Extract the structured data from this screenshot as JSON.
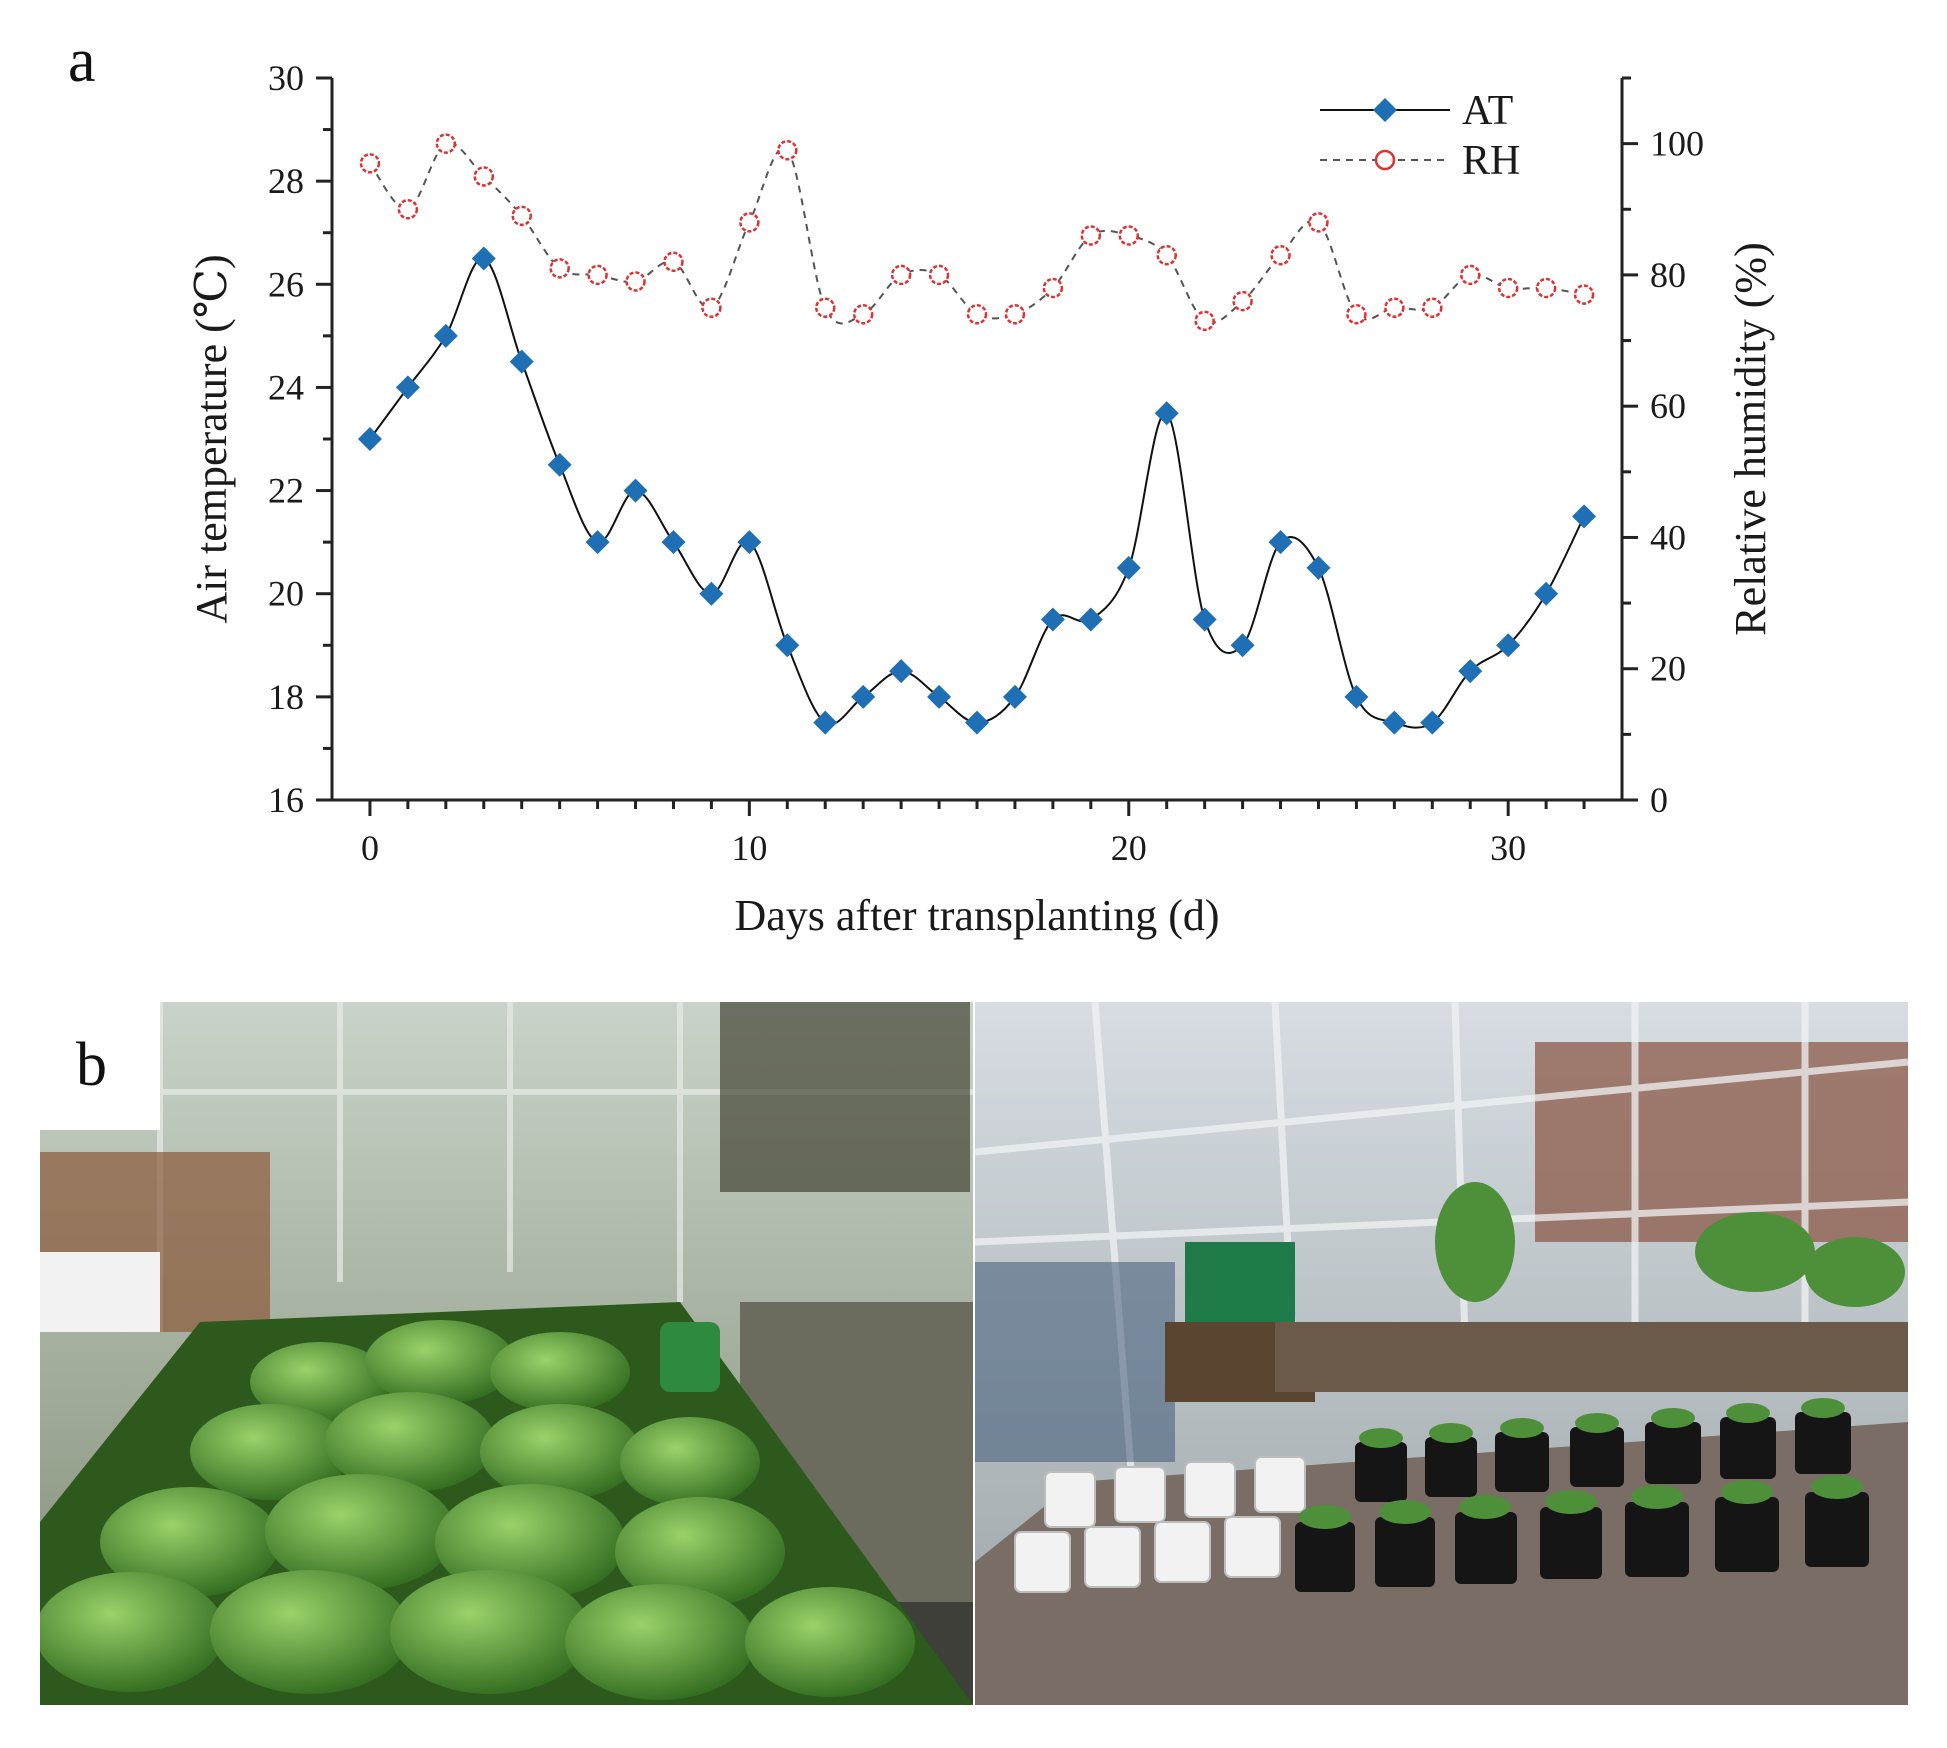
{
  "panel_a": {
    "letter": "a"
  },
  "panel_b": {
    "letter": "b",
    "photos": [
      "greenhouse-bok-choy-bench",
      "greenhouse-potted-seedlings"
    ]
  },
  "colors": {
    "at_line": "#111111",
    "at_marker": "#1f6fb5",
    "rh_line": "#555555",
    "rh_marker": "#e03030"
  },
  "chart_data": {
    "type": "line",
    "xlabel": "Days after transplanting (d)",
    "ylabel_left": "Air temperature (℃)",
    "ylabel_right": "Relative humidity (%)",
    "xlim": [
      -1,
      33
    ],
    "ylim_left": [
      16,
      30
    ],
    "ylim_right": [
      0,
      110
    ],
    "x_ticks": [
      0,
      10,
      20,
      30
    ],
    "y_ticks_left": [
      16,
      18,
      20,
      22,
      24,
      26,
      28,
      30
    ],
    "y_ticks_right": [
      0,
      20,
      40,
      60,
      80,
      100
    ],
    "legend_position": "top-right",
    "x": [
      0,
      1,
      2,
      3,
      4,
      5,
      6,
      7,
      8,
      9,
      10,
      11,
      12,
      13,
      14,
      15,
      16,
      17,
      18,
      19,
      20,
      21,
      22,
      23,
      24,
      25,
      26,
      27,
      28,
      29,
      30,
      31,
      32
    ],
    "series": [
      {
        "name": "AT",
        "axis": "left",
        "marker": "diamond",
        "line": "solid",
        "values": [
          23,
          24,
          25,
          26.5,
          24.5,
          22.5,
          21,
          22,
          21,
          20,
          21,
          19,
          17.5,
          18,
          18.5,
          18,
          17.5,
          18,
          19.5,
          19.5,
          20.5,
          23.5,
          19.5,
          19,
          21,
          20.5,
          18,
          17.5,
          17.5,
          18.5,
          19,
          20,
          21.5
        ]
      },
      {
        "name": "RH",
        "axis": "right",
        "marker": "open-circle",
        "line": "dashed",
        "values": [
          97,
          90,
          100,
          95,
          89,
          81,
          80,
          79,
          82,
          75,
          88,
          99,
          75,
          74,
          80,
          80,
          74,
          74,
          78,
          86,
          86,
          83,
          73,
          76,
          83,
          88,
          74,
          75,
          75,
          80,
          78,
          78,
          77
        ]
      }
    ]
  }
}
